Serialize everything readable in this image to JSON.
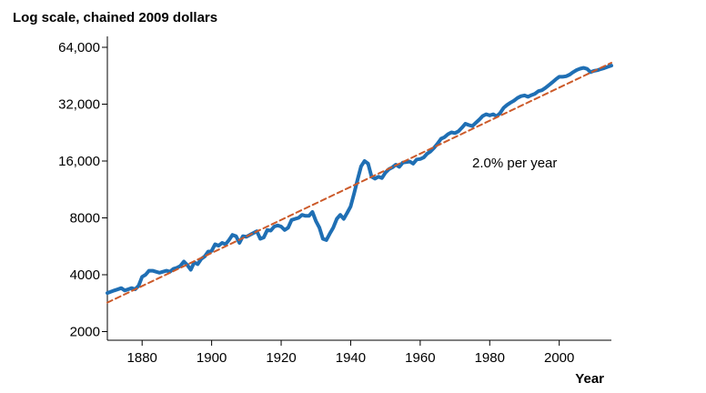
{
  "chart_data": {
    "type": "line",
    "title": "Log scale, chained 2009 dollars",
    "xlabel": "Year",
    "ylabel": "",
    "scale_y": "log2",
    "xlim": [
      1870,
      2015
    ],
    "ylim": [
      1800,
      64000
    ],
    "grid": false,
    "x_ticks": [
      1880,
      1900,
      1920,
      1940,
      1960,
      1980,
      2000
    ],
    "y_ticks": [
      {
        "value": 2000,
        "label": "2000"
      },
      {
        "value": 4000,
        "label": "4000"
      },
      {
        "value": 8000,
        "label": "8000"
      },
      {
        "value": 16000,
        "label": "16,000"
      },
      {
        "value": 32000,
        "label": "32,000"
      },
      {
        "value": 64000,
        "label": "64,000"
      }
    ],
    "annotation": "2.0% per year",
    "series": [
      {
        "kind": "line",
        "color": "#1f6fb4",
        "points": [
          [
            1870,
            3200
          ],
          [
            1872,
            3300
          ],
          [
            1874,
            3400
          ],
          [
            1875,
            3300
          ],
          [
            1876,
            3350
          ],
          [
            1877,
            3400
          ],
          [
            1878,
            3350
          ],
          [
            1879,
            3500
          ],
          [
            1880,
            3900
          ],
          [
            1881,
            4000
          ],
          [
            1882,
            4200
          ],
          [
            1883,
            4200
          ],
          [
            1884,
            4150
          ],
          [
            1885,
            4100
          ],
          [
            1886,
            4150
          ],
          [
            1887,
            4200
          ],
          [
            1888,
            4150
          ],
          [
            1889,
            4300
          ],
          [
            1890,
            4350
          ],
          [
            1891,
            4450
          ],
          [
            1892,
            4700
          ],
          [
            1893,
            4500
          ],
          [
            1894,
            4250
          ],
          [
            1895,
            4650
          ],
          [
            1896,
            4550
          ],
          [
            1897,
            4850
          ],
          [
            1898,
            5000
          ],
          [
            1899,
            5300
          ],
          [
            1900,
            5350
          ],
          [
            1901,
            5800
          ],
          [
            1902,
            5700
          ],
          [
            1903,
            5900
          ],
          [
            1904,
            5800
          ],
          [
            1905,
            6100
          ],
          [
            1906,
            6500
          ],
          [
            1907,
            6400
          ],
          [
            1908,
            5900
          ],
          [
            1909,
            6400
          ],
          [
            1910,
            6350
          ],
          [
            1911,
            6500
          ],
          [
            1912,
            6650
          ],
          [
            1913,
            6800
          ],
          [
            1914,
            6200
          ],
          [
            1915,
            6300
          ],
          [
            1916,
            6900
          ],
          [
            1917,
            6850
          ],
          [
            1918,
            7200
          ],
          [
            1919,
            7300
          ],
          [
            1920,
            7200
          ],
          [
            1921,
            6900
          ],
          [
            1922,
            7100
          ],
          [
            1923,
            7800
          ],
          [
            1924,
            7900
          ],
          [
            1925,
            8000
          ],
          [
            1926,
            8300
          ],
          [
            1927,
            8200
          ],
          [
            1928,
            8200
          ],
          [
            1929,
            8600
          ],
          [
            1930,
            7700
          ],
          [
            1931,
            7100
          ],
          [
            1932,
            6200
          ],
          [
            1933,
            6100
          ],
          [
            1934,
            6600
          ],
          [
            1935,
            7100
          ],
          [
            1936,
            7900
          ],
          [
            1937,
            8300
          ],
          [
            1938,
            7900
          ],
          [
            1939,
            8500
          ],
          [
            1940,
            9200
          ],
          [
            1941,
            10800
          ],
          [
            1942,
            12800
          ],
          [
            1943,
            15000
          ],
          [
            1944,
            16000
          ],
          [
            1945,
            15500
          ],
          [
            1946,
            13200
          ],
          [
            1947,
            12900
          ],
          [
            1948,
            13200
          ],
          [
            1949,
            13000
          ],
          [
            1950,
            13900
          ],
          [
            1951,
            14500
          ],
          [
            1952,
            14800
          ],
          [
            1953,
            15300
          ],
          [
            1954,
            14900
          ],
          [
            1955,
            15700
          ],
          [
            1956,
            15800
          ],
          [
            1957,
            15900
          ],
          [
            1958,
            15500
          ],
          [
            1959,
            16300
          ],
          [
            1960,
            16400
          ],
          [
            1961,
            16700
          ],
          [
            1962,
            17500
          ],
          [
            1963,
            18000
          ],
          [
            1964,
            18800
          ],
          [
            1965,
            19800
          ],
          [
            1966,
            21000
          ],
          [
            1967,
            21400
          ],
          [
            1968,
            22200
          ],
          [
            1969,
            22700
          ],
          [
            1970,
            22500
          ],
          [
            1971,
            23000
          ],
          [
            1972,
            24000
          ],
          [
            1973,
            25200
          ],
          [
            1974,
            24800
          ],
          [
            1975,
            24500
          ],
          [
            1976,
            25500
          ],
          [
            1977,
            26500
          ],
          [
            1978,
            27700
          ],
          [
            1979,
            28300
          ],
          [
            1980,
            27900
          ],
          [
            1981,
            28300
          ],
          [
            1982,
            27600
          ],
          [
            1983,
            28700
          ],
          [
            1984,
            30600
          ],
          [
            1985,
            31700
          ],
          [
            1986,
            32600
          ],
          [
            1987,
            33400
          ],
          [
            1988,
            34500
          ],
          [
            1989,
            35300
          ],
          [
            1990,
            35600
          ],
          [
            1991,
            35000
          ],
          [
            1992,
            35700
          ],
          [
            1993,
            36300
          ],
          [
            1994,
            37500
          ],
          [
            1995,
            37900
          ],
          [
            1996,
            39000
          ],
          [
            1997,
            40300
          ],
          [
            1998,
            41700
          ],
          [
            1999,
            43300
          ],
          [
            2000,
            44700
          ],
          [
            2001,
            44700
          ],
          [
            2002,
            45000
          ],
          [
            2003,
            45900
          ],
          [
            2004,
            47300
          ],
          [
            2005,
            48500
          ],
          [
            2006,
            49300
          ],
          [
            2007,
            49800
          ],
          [
            2008,
            49200
          ],
          [
            2009,
            47300
          ],
          [
            2010,
            48000
          ],
          [
            2011,
            48400
          ],
          [
            2012,
            49100
          ],
          [
            2013,
            49700
          ],
          [
            2014,
            50500
          ],
          [
            2015,
            51200
          ]
        ]
      },
      {
        "kind": "trend",
        "color": "#cc5a2a",
        "points": [
          [
            1870,
            2850
          ],
          [
            2015,
            53000
          ]
        ]
      }
    ]
  }
}
